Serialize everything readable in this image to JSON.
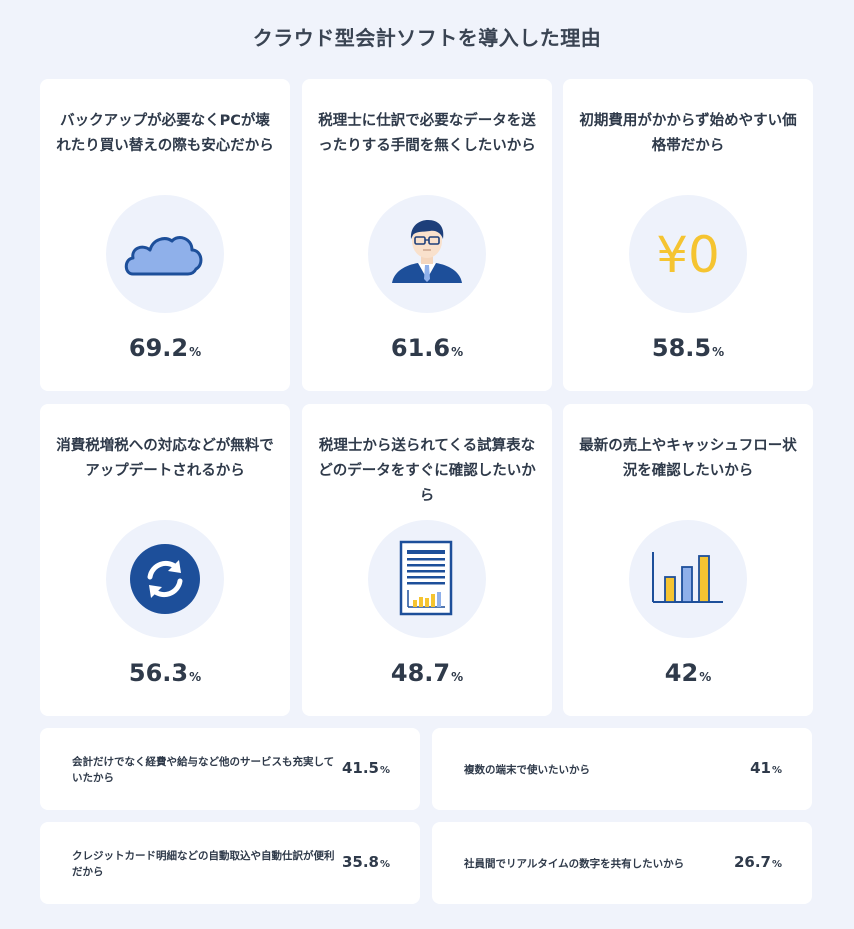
{
  "title": "クラウド型会計ソフトを導入した理由",
  "colors": {
    "background": "#f0f3fb",
    "card": "#ffffff",
    "icon_circle": "#eef2fb",
    "brand_blue": "#1d4f9a",
    "light_blue": "#8fb0ea",
    "yellow": "#f5c431"
  },
  "cards": [
    {
      "label": "バックアップが必要なくPCが壊れたり買い替えの際も安心だから",
      "value": "69.2",
      "unit": "%",
      "icon": "cloud-icon"
    },
    {
      "label": "税理士に仕訳で必要なデータを送ったりする手間を無くしたいから",
      "value": "61.6",
      "unit": "%",
      "icon": "businessman-icon"
    },
    {
      "label": "初期費用がかからず始めやすい価格帯だから",
      "value": "58.5",
      "unit": "%",
      "icon": "yen-zero-icon",
      "icon_text": "¥0"
    },
    {
      "label": "消費税増税への対応などが無料でアップデートされるから",
      "value": "56.3",
      "unit": "%",
      "icon": "refresh-icon"
    },
    {
      "label": "税理士から送られてくる試算表などのデータをすぐに確認したいから",
      "value": "48.7",
      "unit": "%",
      "icon": "report-document-icon"
    },
    {
      "label": "最新の売上やキャッシュフロー状況を確認したいから",
      "value": "42",
      "unit": "%",
      "icon": "bar-chart-icon"
    }
  ],
  "small_cards": [
    {
      "label": "会計だけでなく経費や給与など他のサービスも充実していたから",
      "value": "41.5",
      "unit": "%"
    },
    {
      "label": "複数の端末で使いたいから",
      "value": "41",
      "unit": "%"
    },
    {
      "label": "クレジットカード明細などの自動取込や自動仕訳が便利だから",
      "value": "35.8",
      "unit": "%"
    },
    {
      "label": "社員間でリアルタイムの数字を共有したいから",
      "value": "26.7",
      "unit": "%"
    }
  ],
  "chart_data": {
    "type": "table",
    "title": "クラウド型会計ソフトを導入した理由",
    "unit": "%",
    "categories": [
      "バックアップが必要なくPCが壊れたり買い替えの際も安心だから",
      "税理士に仕訳で必要なデータを送ったりする手間を無くしたいから",
      "初期費用がかからず始めやすい価格帯だから",
      "消費税増税への対応などが無料でアップデートされるから",
      "税理士から送られてくる試算表などのデータをすぐに確認したいから",
      "最新の売上やキャッシュフロー状況を確認したいから",
      "会計だけでなく経費や給与など他のサービスも充実していたから",
      "複数の端末で使いたいから",
      "クレジットカード明細などの自動取込や自動仕訳が便利だから",
      "社員間でリアルタイムの数字を共有したいから"
    ],
    "values": [
      69.2,
      61.6,
      58.5,
      56.3,
      48.7,
      42,
      41.5,
      41,
      35.8,
      26.7
    ]
  }
}
